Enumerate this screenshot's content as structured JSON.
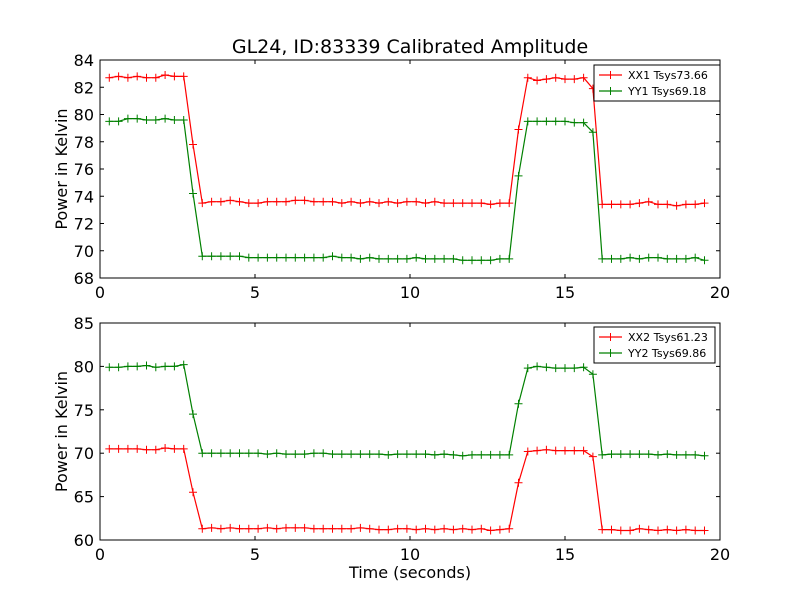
{
  "figure": {
    "title": "GL24, ID:83339 Calibrated Amplitude",
    "xlabel": "Time (seconds)"
  },
  "chart_data": [
    {
      "type": "line",
      "title": "GL24, ID:83339 Calibrated Amplitude",
      "xlabel": "",
      "ylabel": "Power in Kelvin",
      "xlim": [
        0,
        20
      ],
      "ylim": [
        68,
        84
      ],
      "xticks": [
        0,
        5,
        10,
        15,
        20
      ],
      "yticks": [
        68,
        70,
        72,
        74,
        76,
        78,
        80,
        82,
        84
      ],
      "legend_position": "top-right",
      "grid": false,
      "x": [
        0.3,
        0.6,
        0.9,
        1.2,
        1.5,
        1.8,
        2.1,
        2.4,
        2.7,
        3.0,
        3.3,
        3.6,
        3.9,
        4.2,
        4.5,
        4.8,
        5.1,
        5.4,
        5.7,
        6.0,
        6.3,
        6.6,
        6.9,
        7.2,
        7.5,
        7.8,
        8.1,
        8.4,
        8.7,
        9.0,
        9.3,
        9.6,
        9.9,
        10.2,
        10.5,
        10.8,
        11.1,
        11.4,
        11.7,
        12.0,
        12.3,
        12.6,
        12.9,
        13.2,
        13.5,
        13.8,
        14.1,
        14.4,
        14.7,
        15.0,
        15.3,
        15.6,
        15.9,
        16.2,
        16.5,
        16.8,
        17.1,
        17.4,
        17.7,
        18.0,
        18.3,
        18.6,
        18.9,
        19.2,
        19.5
      ],
      "series": [
        {
          "name": "XX1 Tsys73.66",
          "color": "#ff0000",
          "values": [
            82.7,
            82.8,
            82.7,
            82.8,
            82.7,
            82.7,
            82.9,
            82.8,
            82.8,
            77.8,
            73.5,
            73.6,
            73.6,
            73.7,
            73.6,
            73.5,
            73.5,
            73.6,
            73.6,
            73.6,
            73.7,
            73.7,
            73.6,
            73.6,
            73.6,
            73.5,
            73.6,
            73.5,
            73.6,
            73.5,
            73.6,
            73.5,
            73.6,
            73.6,
            73.5,
            73.6,
            73.5,
            73.5,
            73.5,
            73.5,
            73.5,
            73.4,
            73.5,
            73.5,
            78.9,
            82.7,
            82.5,
            82.6,
            82.7,
            82.6,
            82.6,
            82.7,
            81.9,
            73.4,
            73.4,
            73.4,
            73.4,
            73.5,
            73.6,
            73.4,
            73.4,
            73.3,
            73.4,
            73.4,
            73.5
          ]
        },
        {
          "name": "YY1 Tsys69.18",
          "color": "#008000",
          "values": [
            79.5,
            79.5,
            79.7,
            79.7,
            79.6,
            79.6,
            79.7,
            79.6,
            79.6,
            74.2,
            69.6,
            69.6,
            69.6,
            69.6,
            69.6,
            69.5,
            69.5,
            69.5,
            69.5,
            69.5,
            69.5,
            69.5,
            69.5,
            69.5,
            69.6,
            69.5,
            69.5,
            69.4,
            69.5,
            69.4,
            69.4,
            69.4,
            69.4,
            69.5,
            69.4,
            69.4,
            69.4,
            69.4,
            69.3,
            69.3,
            69.3,
            69.3,
            69.4,
            69.4,
            75.5,
            79.5,
            79.5,
            79.5,
            79.5,
            79.5,
            79.4,
            79.4,
            78.7,
            69.4,
            69.4,
            69.4,
            69.5,
            69.4,
            69.5,
            69.5,
            69.4,
            69.4,
            69.4,
            69.5,
            69.3
          ]
        }
      ]
    },
    {
      "type": "line",
      "title": "",
      "xlabel": "Time (seconds)",
      "ylabel": "Power in Kelvin",
      "xlim": [
        0,
        20
      ],
      "ylim": [
        60,
        85
      ],
      "xticks": [
        0,
        5,
        10,
        15,
        20
      ],
      "yticks": [
        60,
        65,
        70,
        75,
        80,
        85
      ],
      "legend_position": "top-right",
      "grid": false,
      "x": [
        0.3,
        0.6,
        0.9,
        1.2,
        1.5,
        1.8,
        2.1,
        2.4,
        2.7,
        3.0,
        3.3,
        3.6,
        3.9,
        4.2,
        4.5,
        4.8,
        5.1,
        5.4,
        5.7,
        6.0,
        6.3,
        6.6,
        6.9,
        7.2,
        7.5,
        7.8,
        8.1,
        8.4,
        8.7,
        9.0,
        9.3,
        9.6,
        9.9,
        10.2,
        10.5,
        10.8,
        11.1,
        11.4,
        11.7,
        12.0,
        12.3,
        12.6,
        12.9,
        13.2,
        13.5,
        13.8,
        14.1,
        14.4,
        14.7,
        15.0,
        15.3,
        15.6,
        15.9,
        16.2,
        16.5,
        16.8,
        17.1,
        17.4,
        17.7,
        18.0,
        18.3,
        18.6,
        18.9,
        19.2,
        19.5
      ],
      "series": [
        {
          "name": "XX2 Tsys61.23",
          "color": "#ff0000",
          "values": [
            70.5,
            70.5,
            70.5,
            70.5,
            70.4,
            70.4,
            70.6,
            70.5,
            70.5,
            65.5,
            61.3,
            61.4,
            61.3,
            61.4,
            61.3,
            61.3,
            61.3,
            61.4,
            61.3,
            61.4,
            61.4,
            61.4,
            61.3,
            61.3,
            61.3,
            61.3,
            61.3,
            61.4,
            61.3,
            61.2,
            61.2,
            61.3,
            61.3,
            61.2,
            61.3,
            61.2,
            61.3,
            61.2,
            61.3,
            61.2,
            61.3,
            61.1,
            61.2,
            61.3,
            66.6,
            70.2,
            70.3,
            70.4,
            70.3,
            70.3,
            70.3,
            70.3,
            69.6,
            61.2,
            61.2,
            61.1,
            61.1,
            61.3,
            61.2,
            61.1,
            61.2,
            61.1,
            61.2,
            61.1,
            61.1
          ]
        },
        {
          "name": "YY2 Tsys69.86",
          "color": "#008000",
          "values": [
            79.9,
            79.9,
            80.0,
            80.0,
            80.1,
            79.9,
            80.0,
            80.0,
            80.2,
            74.5,
            70.0,
            70.0,
            70.0,
            70.0,
            70.0,
            70.0,
            70.0,
            69.9,
            70.0,
            69.9,
            69.9,
            69.9,
            70.0,
            70.0,
            69.9,
            69.9,
            69.9,
            69.9,
            69.9,
            69.9,
            69.8,
            69.9,
            69.9,
            69.9,
            69.9,
            69.8,
            69.9,
            69.8,
            69.7,
            69.8,
            69.8,
            69.8,
            69.8,
            69.8,
            75.7,
            79.8,
            80.0,
            79.9,
            79.8,
            79.8,
            79.8,
            79.9,
            79.1,
            69.8,
            69.9,
            69.9,
            69.9,
            69.9,
            69.9,
            69.8,
            69.9,
            69.8,
            69.8,
            69.8,
            69.7
          ]
        }
      ]
    }
  ]
}
